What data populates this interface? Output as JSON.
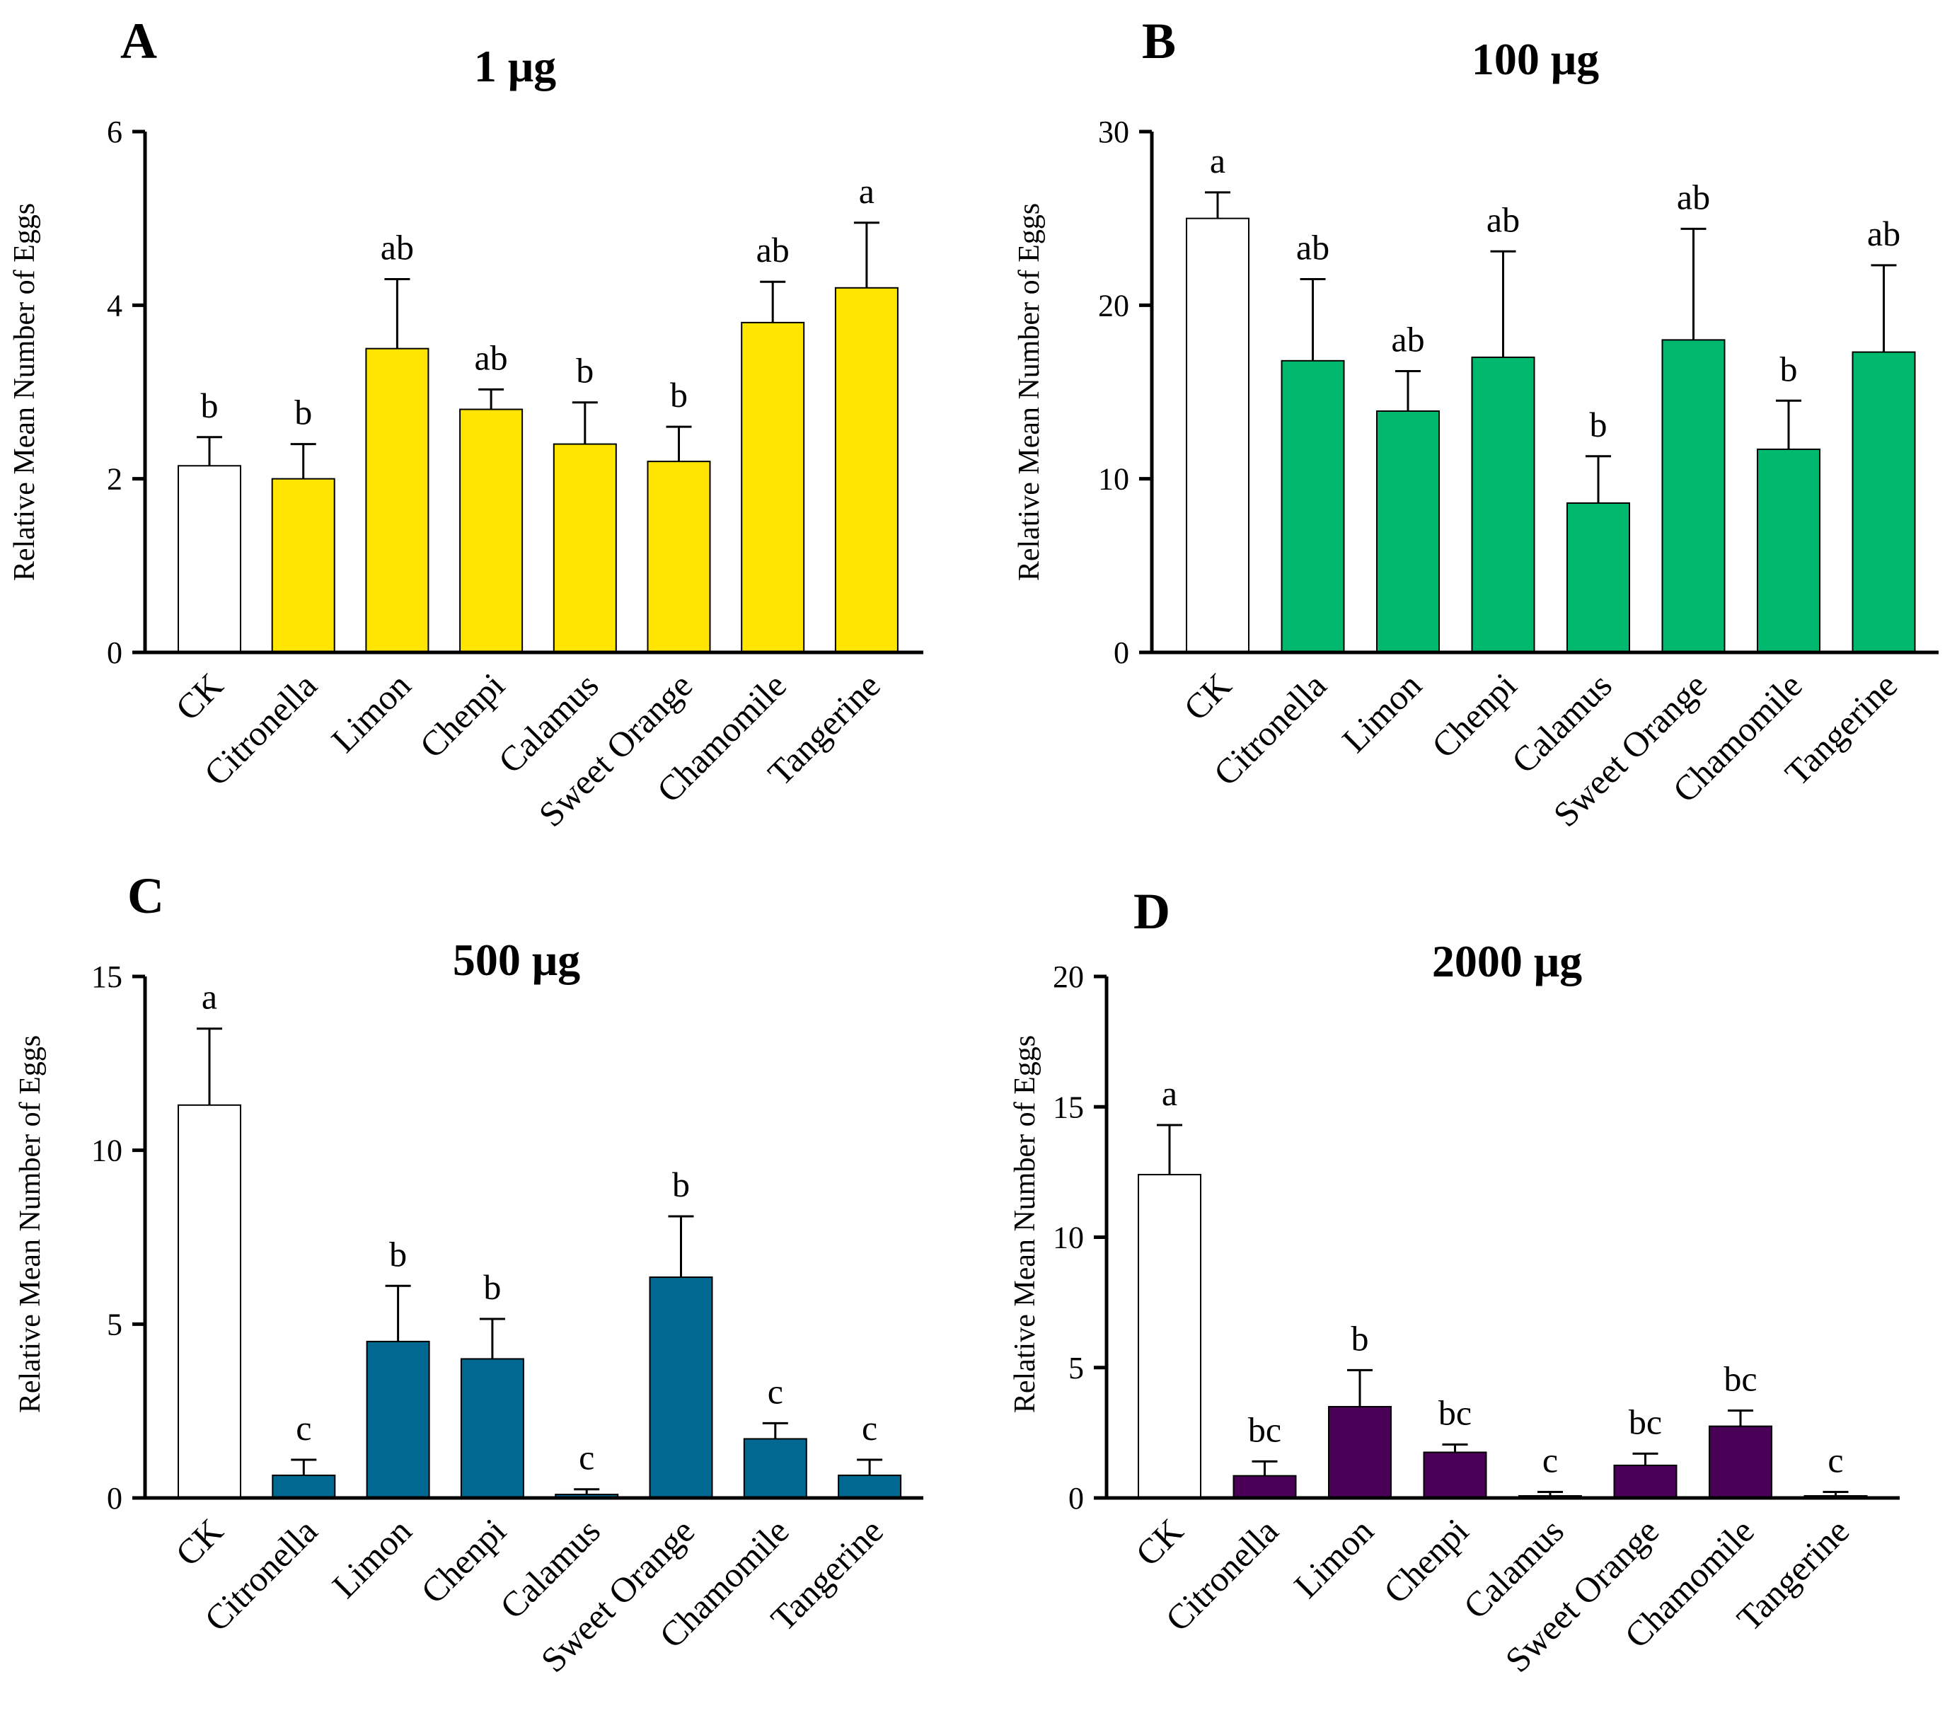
{
  "chart_data": [
    {
      "panel": "A",
      "type": "bar",
      "title": "1 μg",
      "ylabel": "Relative Mean Number of Eggs",
      "xlabel": "",
      "ylim": [
        0,
        6
      ],
      "yticks": [
        0,
        2,
        4,
        6
      ],
      "bar_color": "#FFE500",
      "control_color": "#FFFFFF",
      "categories": [
        "CK",
        "Citronella",
        "Limon",
        "Chenpi",
        "Calamus",
        "Sweet Orange",
        "Chamomile",
        "Tangerine"
      ],
      "values": [
        2.15,
        2.0,
        3.5,
        2.8,
        2.4,
        2.2,
        3.8,
        4.2
      ],
      "errors": [
        0.33,
        0.4,
        0.8,
        0.23,
        0.48,
        0.4,
        0.47,
        0.75
      ],
      "significance": [
        "b",
        "b",
        "ab",
        "ab",
        "b",
        "b",
        "ab",
        "a"
      ]
    },
    {
      "panel": "B",
      "type": "bar",
      "title": "100 μg",
      "ylabel": "Relative Mean Number of Eggs",
      "xlabel": "",
      "ylim": [
        0,
        30
      ],
      "yticks": [
        0,
        10,
        20,
        30
      ],
      "bar_color": "#00B86E",
      "control_color": "#FFFFFF",
      "categories": [
        "CK",
        "Citronella",
        "Limon",
        "Chenpi",
        "Calamus",
        "Sweet Orange",
        "Chamomile",
        "Tangerine"
      ],
      "values": [
        25.0,
        16.8,
        13.9,
        17.0,
        8.6,
        18.0,
        11.7,
        17.3
      ],
      "errors": [
        1.5,
        4.7,
        2.3,
        6.1,
        2.7,
        6.4,
        2.8,
        5.0
      ],
      "significance": [
        "a",
        "ab",
        "ab",
        "ab",
        "b",
        "ab",
        "b",
        "ab"
      ]
    },
    {
      "panel": "C",
      "type": "bar",
      "title": "500 μg",
      "ylabel": "Relative Mean Number of Eggs",
      "xlabel": "",
      "ylim": [
        0,
        15
      ],
      "yticks": [
        0,
        5,
        10,
        15
      ],
      "bar_color": "#006891",
      "control_color": "#FFFFFF",
      "categories": [
        "CK",
        "Citronella",
        "Limon",
        "Chenpi",
        "Calamus",
        "Sweet Orange",
        "Chamomile",
        "Tangerine"
      ],
      "values": [
        11.3,
        0.65,
        4.5,
        4.0,
        0.1,
        6.35,
        1.7,
        0.65
      ],
      "errors": [
        2.2,
        0.45,
        1.6,
        1.15,
        0.15,
        1.75,
        0.45,
        0.45
      ],
      "significance": [
        "a",
        "c",
        "b",
        "b",
        "c",
        "b",
        "c",
        "c"
      ]
    },
    {
      "panel": "D",
      "type": "bar",
      "title": "2000 μg",
      "ylabel": "Relative Mean Number of Eggs",
      "xlabel": "",
      "ylim": [
        0,
        20
      ],
      "yticks": [
        0,
        5,
        10,
        15,
        20
      ],
      "bar_color": "#4B0058",
      "control_color": "#FFFFFF",
      "categories": [
        "CK",
        "Citronella",
        "Limon",
        "Chenpi",
        "Calamus",
        "Sweet Orange",
        "Chamomile",
        "Tangerine"
      ],
      "values": [
        12.4,
        0.85,
        3.5,
        1.75,
        0.08,
        1.25,
        2.75,
        0.08
      ],
      "errors": [
        1.9,
        0.55,
        1.4,
        0.3,
        0.15,
        0.45,
        0.6,
        0.15
      ],
      "significance": [
        "a",
        "bc",
        "b",
        "bc",
        "c",
        "bc",
        "bc",
        "c"
      ]
    }
  ]
}
